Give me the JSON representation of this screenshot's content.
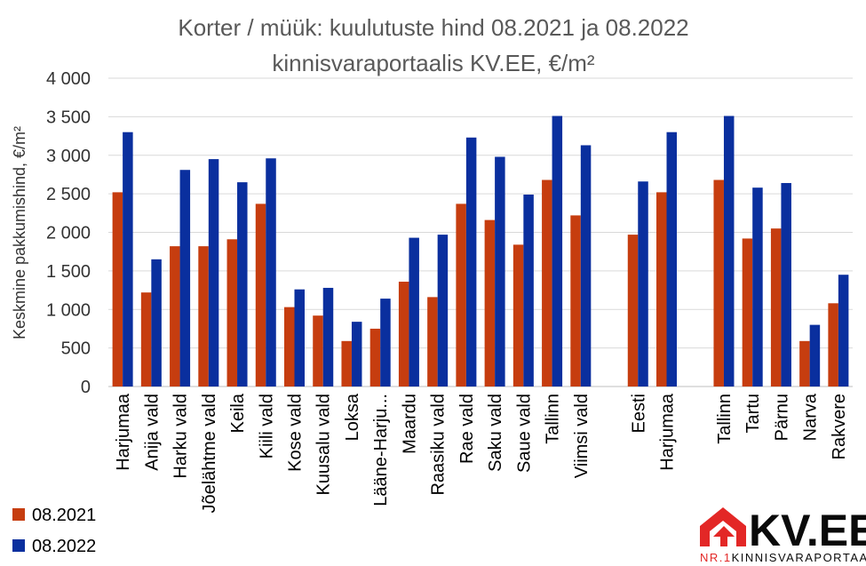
{
  "chart_data": {
    "type": "bar",
    "title": [
      "Korter / müük: kuulutuste hind 08.2021 ja 08.2022",
      "kinnisvaraportaalis KV.EE, €/m²"
    ],
    "ylabel": "Keskmine pakkumishind, €/m²",
    "xlabel": "",
    "ylim": [
      0,
      4000
    ],
    "yticks": [
      0,
      500,
      1000,
      1500,
      2000,
      2500,
      3000,
      3500,
      4000
    ],
    "ytick_labels": [
      "0",
      "500",
      "1 000",
      "1 500",
      "2 000",
      "2 500",
      "3 000",
      "3 500",
      "4 000"
    ],
    "grid": true,
    "legend_position": "bottom-left",
    "categories": [
      "Harjumaa",
      "Anija vald",
      "Harku vald",
      "Jõelähtme vald",
      "Keila",
      "Kiili vald",
      "Kose vald",
      "Kuusalu vald",
      "Loksa",
      "Lääne-Harju...",
      "Maardu",
      "Raasiku vald",
      "Rae vald",
      "Saku vald",
      "Saue vald",
      "Tallinn",
      "Viimsi vald",
      "",
      "Eesti",
      "Harjumaa",
      "",
      "Tallinn",
      "Tartu",
      "Pärnu",
      "Narva",
      "Rakvere"
    ],
    "series": [
      {
        "name": "08.2021",
        "color": "#c63d0f",
        "values": [
          2520,
          1220,
          1820,
          1820,
          1910,
          2370,
          1030,
          920,
          590,
          750,
          1360,
          1160,
          2370,
          2160,
          1840,
          2680,
          2220,
          null,
          1970,
          2520,
          null,
          2680,
          1920,
          2050,
          590,
          1080
        ]
      },
      {
        "name": "08.2022",
        "color": "#0a2f9e",
        "values": [
          3300,
          1650,
          2810,
          2950,
          2650,
          2960,
          1260,
          1280,
          840,
          1140,
          1930,
          1970,
          3230,
          2980,
          2490,
          3510,
          3130,
          null,
          2660,
          3300,
          null,
          3510,
          2580,
          2640,
          800,
          1450
        ]
      }
    ]
  },
  "logo": {
    "text": "KV.EE",
    "sub_prefix": "NR.1",
    "sub_text": "KINNISVARAPORTAAL",
    "red": "#e32726"
  }
}
